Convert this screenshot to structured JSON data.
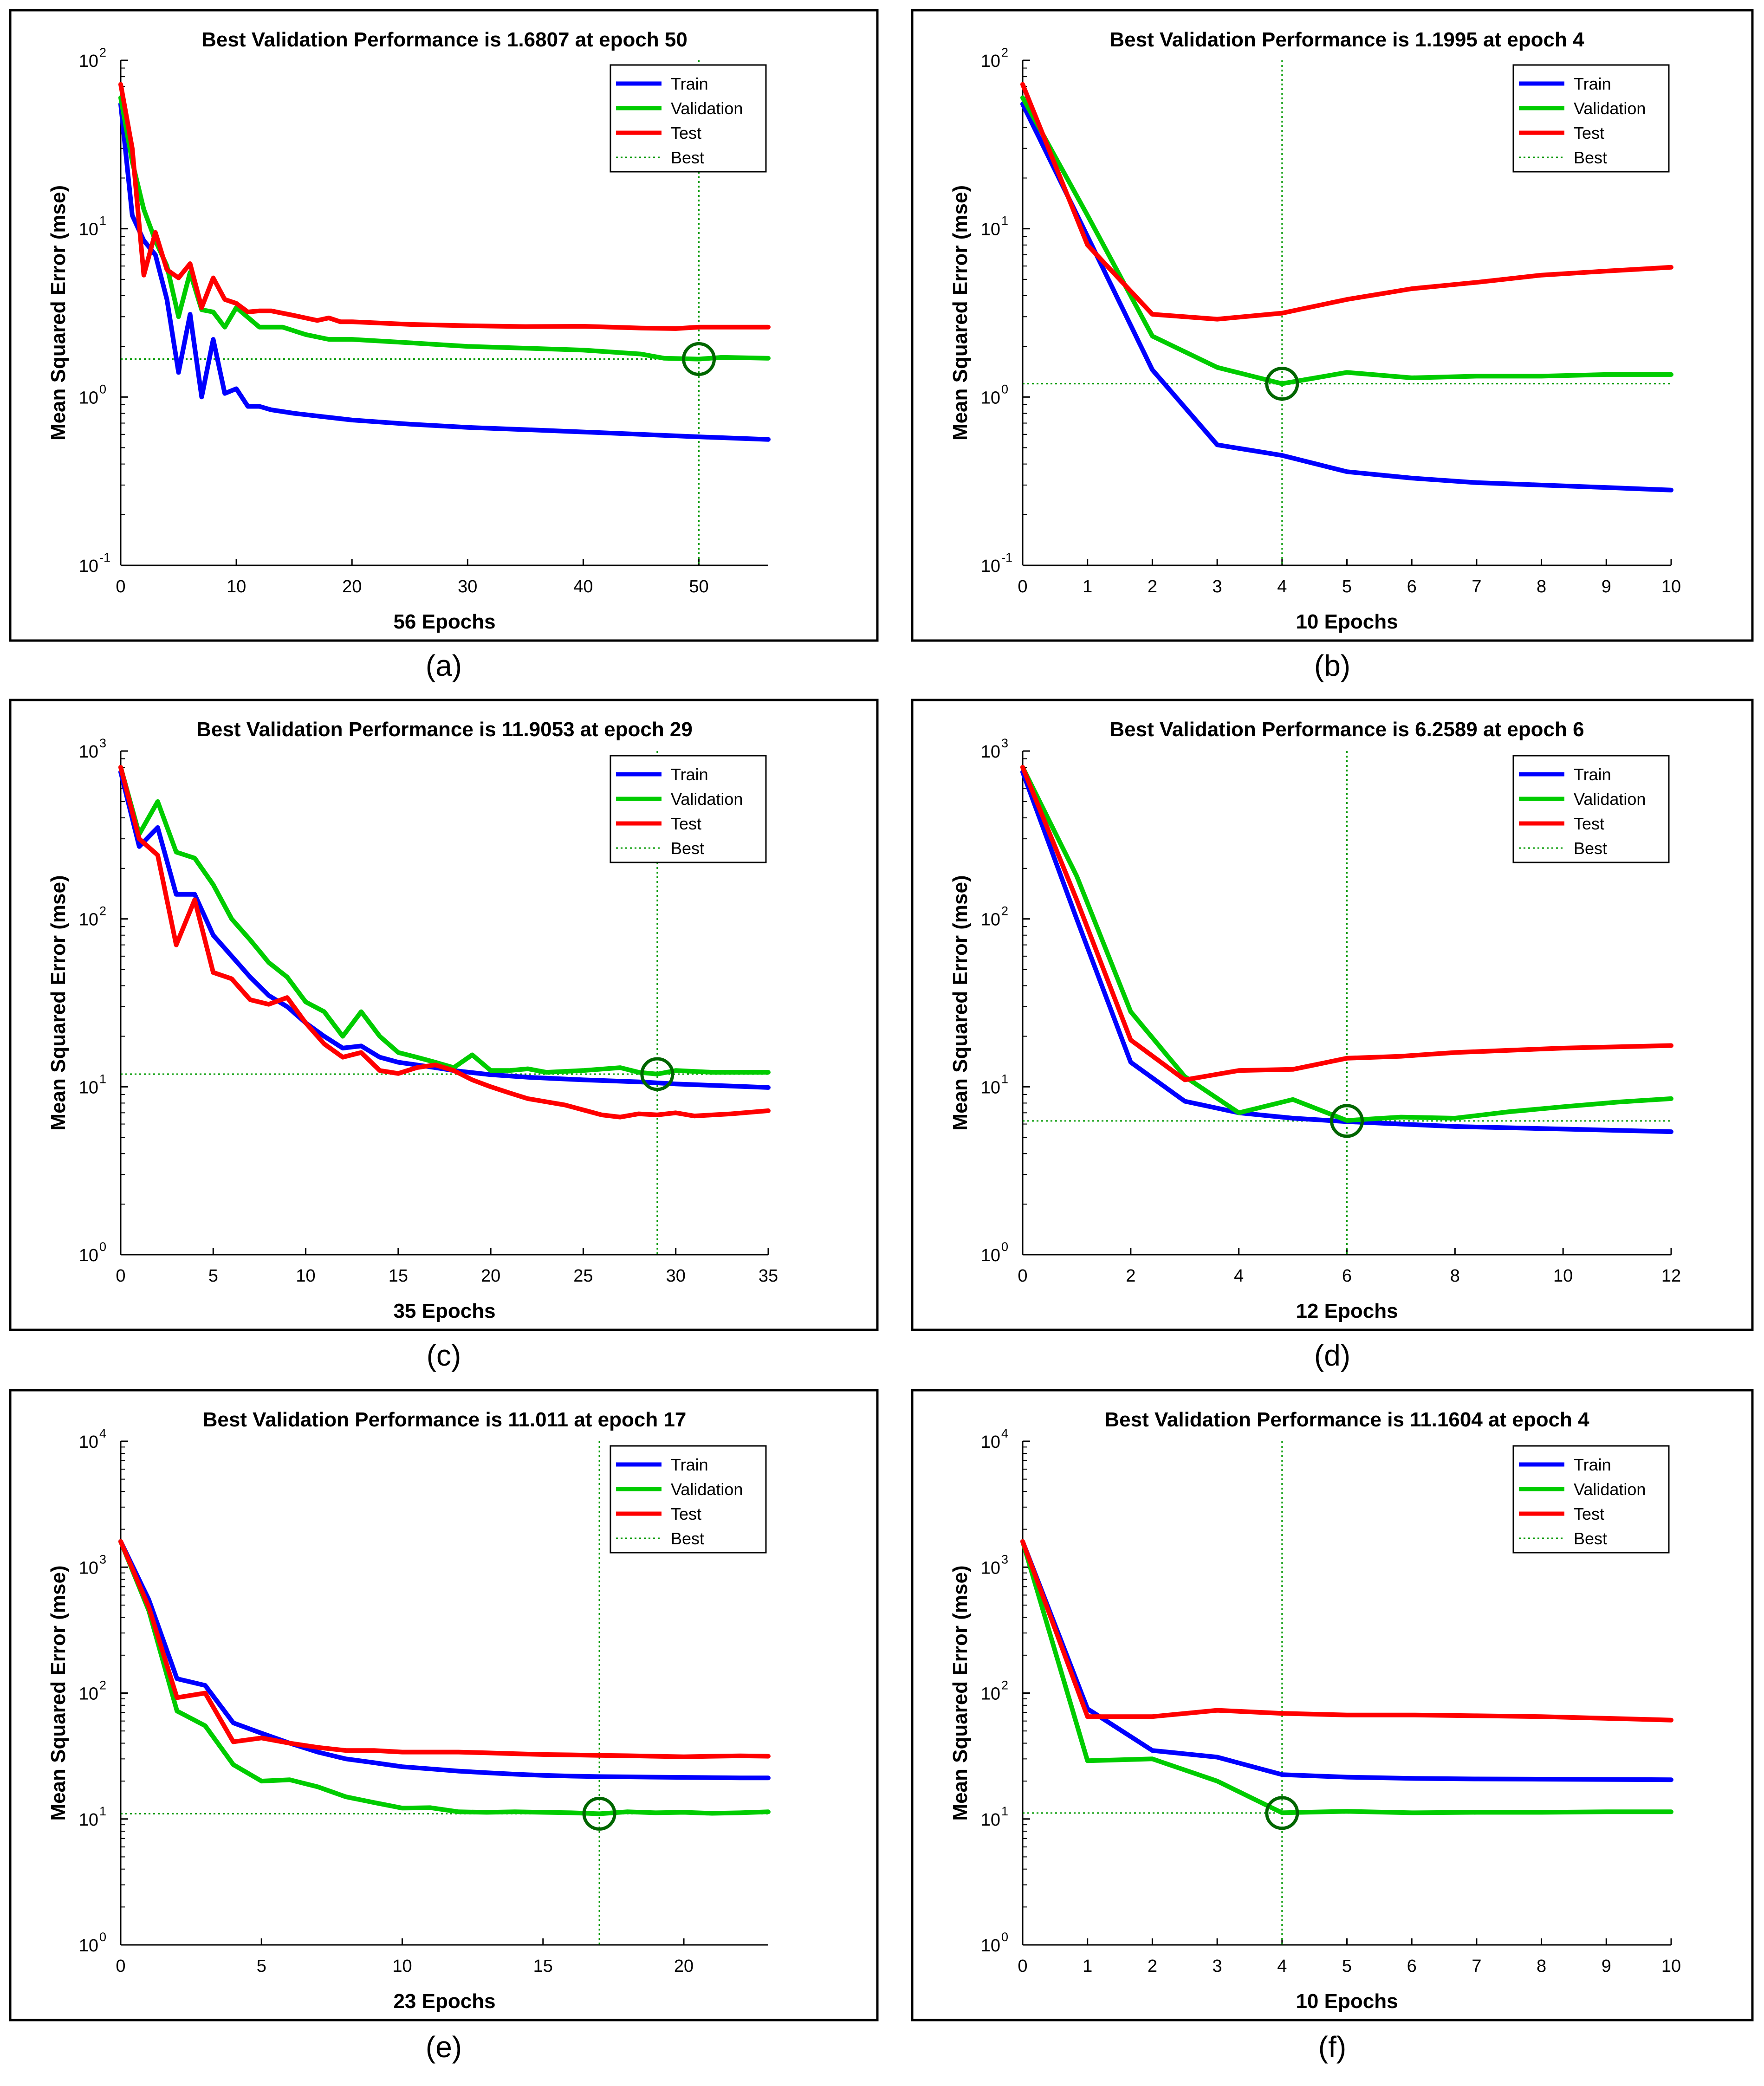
{
  "colors": {
    "train": "#0000ff",
    "validation": "#00cc00",
    "test": "#ff0000",
    "best": "#009900",
    "best_circle": "#006600",
    "frame": "#000000",
    "axis_text": "#000000"
  },
  "chart_data": [
    {
      "type": "line",
      "panel_label": "(a)",
      "title": "Best Validation Performance is 1.6807 at epoch 50",
      "xlabel": "56 Epochs",
      "ylabel": "Mean Squared Error  (mse)",
      "yscale": "log",
      "xlim": [
        0,
        56
      ],
      "ylim": [
        0.1,
        100
      ],
      "xticks": [
        0,
        10,
        20,
        30,
        40,
        50
      ],
      "yticks": [
        0.1,
        1,
        10,
        100
      ],
      "ytick_labels": [
        {
          "base": "10",
          "exp": "-1"
        },
        {
          "base": "10",
          "exp": "0"
        },
        {
          "base": "10",
          "exp": "1"
        },
        {
          "base": "10",
          "exp": "2"
        }
      ],
      "legend": [
        "Train",
        "Validation",
        "Test",
        "Best"
      ],
      "legend_position": "top-right",
      "best": {
        "epoch": 50,
        "value": 1.6807
      },
      "series": [
        {
          "name": "Train",
          "x": [
            0,
            1,
            2,
            3,
            4,
            5,
            6,
            7,
            8,
            9,
            10,
            11,
            12,
            13,
            15,
            20,
            25,
            30,
            35,
            40,
            45,
            50,
            56
          ],
          "values": [
            55,
            12,
            8.5,
            7,
            3.8,
            1.4,
            3.1,
            1.0,
            2.2,
            1.05,
            1.12,
            0.88,
            0.88,
            0.84,
            0.8,
            0.73,
            0.69,
            0.66,
            0.64,
            0.62,
            0.6,
            0.58,
            0.56
          ]
        },
        {
          "name": "Validation",
          "x": [
            0,
            1,
            2,
            3,
            4,
            5,
            6,
            7,
            8,
            9,
            10,
            12,
            14,
            16,
            18,
            20,
            25,
            30,
            35,
            40,
            45,
            47,
            50,
            52,
            56
          ],
          "values": [
            60,
            25,
            13,
            8.5,
            6,
            3.0,
            5.5,
            3.3,
            3.2,
            2.6,
            3.4,
            2.6,
            2.6,
            2.35,
            2.2,
            2.2,
            2.1,
            2.0,
            1.95,
            1.9,
            1.8,
            1.7,
            1.68,
            1.72,
            1.7
          ]
        },
        {
          "name": "Test",
          "x": [
            0,
            1,
            2,
            3,
            4,
            5,
            6,
            7,
            8,
            9,
            10,
            11,
            12,
            13,
            15,
            17,
            18,
            19,
            20,
            25,
            30,
            35,
            40,
            45,
            48,
            50,
            56
          ],
          "values": [
            72,
            30,
            5.3,
            9.5,
            5.7,
            5.1,
            6.2,
            3.4,
            5.1,
            3.8,
            3.6,
            3.2,
            3.25,
            3.25,
            3.05,
            2.85,
            2.95,
            2.8,
            2.8,
            2.7,
            2.65,
            2.62,
            2.63,
            2.57,
            2.55,
            2.6,
            2.6
          ]
        }
      ]
    },
    {
      "type": "line",
      "panel_label": "(b)",
      "title": "Best Validation Performance is 1.1995 at epoch 4",
      "xlabel": "10 Epochs",
      "ylabel": "Mean Squared Error  (mse)",
      "yscale": "log",
      "xlim": [
        0,
        10
      ],
      "ylim": [
        0.1,
        100
      ],
      "xticks": [
        0,
        1,
        2,
        3,
        4,
        5,
        6,
        7,
        8,
        9,
        10
      ],
      "yticks": [
        0.1,
        1,
        10,
        100
      ],
      "ytick_labels": [
        {
          "base": "10",
          "exp": "-1"
        },
        {
          "base": "10",
          "exp": "0"
        },
        {
          "base": "10",
          "exp": "1"
        },
        {
          "base": "10",
          "exp": "2"
        }
      ],
      "legend": [
        "Train",
        "Validation",
        "Test",
        "Best"
      ],
      "legend_position": "top-right",
      "best": {
        "epoch": 4,
        "value": 1.1995
      },
      "series": [
        {
          "name": "Train",
          "x": [
            0,
            1,
            2,
            3,
            4,
            5,
            6,
            7,
            8,
            9,
            10
          ],
          "values": [
            55,
            9,
            1.45,
            0.52,
            0.45,
            0.36,
            0.33,
            0.31,
            0.3,
            0.29,
            0.28
          ]
        },
        {
          "name": "Validation",
          "x": [
            0,
            1,
            2,
            3,
            4,
            5,
            6,
            7,
            8,
            9,
            10
          ],
          "values": [
            60,
            12,
            2.3,
            1.5,
            1.2,
            1.4,
            1.3,
            1.33,
            1.33,
            1.36,
            1.36
          ]
        },
        {
          "name": "Test",
          "x": [
            0,
            1,
            2,
            3,
            4,
            5,
            6,
            7,
            8,
            9,
            10
          ],
          "values": [
            72,
            8,
            3.1,
            2.9,
            3.15,
            3.8,
            4.4,
            4.8,
            5.3,
            5.6,
            5.9
          ]
        }
      ]
    },
    {
      "type": "line",
      "panel_label": "(c)",
      "title": "Best Validation Performance is 11.9053 at epoch 29",
      "xlabel": "35 Epochs",
      "ylabel": "Mean Squared Error  (mse)",
      "yscale": "log",
      "xlim": [
        0,
        35
      ],
      "ylim": [
        1,
        1000
      ],
      "xticks": [
        0,
        5,
        10,
        15,
        20,
        25,
        30,
        35
      ],
      "yticks": [
        1,
        10,
        100,
        1000
      ],
      "ytick_labels": [
        {
          "base": "10",
          "exp": "0"
        },
        {
          "base": "10",
          "exp": "1"
        },
        {
          "base": "10",
          "exp": "2"
        },
        {
          "base": "10",
          "exp": "3"
        }
      ],
      "legend": [
        "Train",
        "Validation",
        "Test",
        "Best"
      ],
      "legend_position": "top-right",
      "best": {
        "epoch": 29,
        "value": 11.9053
      },
      "series": [
        {
          "name": "Train",
          "x": [
            0,
            1,
            2,
            3,
            4,
            5,
            6,
            7,
            8,
            9,
            10,
            11,
            12,
            13,
            14,
            15,
            16,
            17,
            18,
            20,
            22,
            25,
            28,
            30,
            33,
            35
          ],
          "values": [
            750,
            270,
            350,
            140,
            140,
            80,
            60,
            45,
            35,
            30,
            24,
            20,
            17,
            17.5,
            15,
            14,
            13.5,
            13,
            12.5,
            11.8,
            11.4,
            11,
            10.7,
            10.4,
            10.1,
            9.9
          ]
        },
        {
          "name": "Validation",
          "x": [
            0,
            1,
            2,
            3,
            4,
            5,
            6,
            7,
            8,
            9,
            10,
            11,
            12,
            13,
            14,
            15,
            16,
            17,
            18,
            19,
            20,
            21,
            22,
            23,
            25,
            27,
            28,
            29,
            30,
            32,
            35
          ],
          "values": [
            800,
            320,
            500,
            250,
            230,
            160,
            100,
            75,
            55,
            45,
            32,
            28,
            20,
            28,
            20,
            16,
            15,
            14,
            13,
            15.5,
            12.5,
            12.5,
            12.8,
            12.2,
            12.5,
            13,
            12.2,
            11.9,
            12.5,
            12.2,
            12.2
          ]
        },
        {
          "name": "Test",
          "x": [
            0,
            1,
            2,
            3,
            4,
            5,
            6,
            7,
            8,
            9,
            10,
            11,
            12,
            13,
            14,
            15,
            16,
            17,
            18,
            19,
            20,
            21,
            22,
            24,
            26,
            27,
            28,
            29,
            30,
            31,
            33,
            35
          ],
          "values": [
            800,
            300,
            240,
            70,
            130,
            48,
            44,
            33,
            31,
            34,
            24,
            18,
            15,
            16,
            12.5,
            12,
            13,
            13.5,
            12.5,
            11,
            10,
            9.2,
            8.5,
            7.8,
            6.8,
            6.6,
            6.9,
            6.8,
            7.0,
            6.7,
            6.9,
            7.2
          ]
        }
      ]
    },
    {
      "type": "line",
      "panel_label": "(d)",
      "title": "Best Validation Performance is 6.2589 at epoch 6",
      "xlabel": "12 Epochs",
      "ylabel": "Mean Squared Error  (mse)",
      "yscale": "log",
      "xlim": [
        0,
        12
      ],
      "ylim": [
        1,
        1000
      ],
      "xticks": [
        0,
        2,
        4,
        6,
        8,
        10,
        12
      ],
      "yticks": [
        1,
        10,
        100,
        1000
      ],
      "ytick_labels": [
        {
          "base": "10",
          "exp": "0"
        },
        {
          "base": "10",
          "exp": "1"
        },
        {
          "base": "10",
          "exp": "2"
        },
        {
          "base": "10",
          "exp": "3"
        }
      ],
      "legend": [
        "Train",
        "Validation",
        "Test",
        "Best"
      ],
      "legend_position": "top-right",
      "best": {
        "epoch": 6,
        "value": 6.2589
      },
      "series": [
        {
          "name": "Train",
          "x": [
            0,
            1,
            2,
            3,
            4,
            5,
            6,
            7,
            8,
            9,
            10,
            11,
            12
          ],
          "values": [
            750,
            100,
            14,
            8.2,
            7.0,
            6.5,
            6.2,
            6.0,
            5.8,
            5.7,
            5.6,
            5.5,
            5.4
          ]
        },
        {
          "name": "Validation",
          "x": [
            0,
            1,
            2,
            3,
            4,
            5,
            6,
            7,
            8,
            9,
            10,
            11,
            12
          ],
          "values": [
            800,
            180,
            28,
            11.5,
            7.0,
            8.4,
            6.3,
            6.6,
            6.5,
            7.1,
            7.6,
            8.1,
            8.5
          ]
        },
        {
          "name": "Test",
          "x": [
            0,
            1,
            2,
            3,
            4,
            5,
            6,
            7,
            8,
            9,
            10,
            11,
            12
          ],
          "values": [
            800,
            130,
            19,
            11,
            12.5,
            12.7,
            14.8,
            15.2,
            16,
            16.5,
            17,
            17.3,
            17.6
          ]
        }
      ]
    },
    {
      "type": "line",
      "panel_label": "(e)",
      "title": "Best Validation Performance is 11.011 at epoch 17",
      "xlabel": "23 Epochs",
      "ylabel": "Mean Squared Error  (mse)",
      "yscale": "log",
      "xlim": [
        0,
        23
      ],
      "ylim": [
        1,
        10000
      ],
      "xticks": [
        0,
        5,
        10,
        15,
        20
      ],
      "yticks": [
        1,
        10,
        100,
        1000,
        10000
      ],
      "ytick_labels": [
        {
          "base": "10",
          "exp": "0"
        },
        {
          "base": "10",
          "exp": "1"
        },
        {
          "base": "10",
          "exp": "2"
        },
        {
          "base": "10",
          "exp": "3"
        },
        {
          "base": "10",
          "exp": "4"
        }
      ],
      "legend": [
        "Train",
        "Validation",
        "Test",
        "Best"
      ],
      "legend_position": "top-right",
      "best": {
        "epoch": 17,
        "value": 11.011
      },
      "series": [
        {
          "name": "Train",
          "x": [
            0,
            1,
            2,
            3,
            4,
            5,
            6,
            7,
            8,
            9,
            10,
            11,
            12,
            13,
            14,
            15,
            16,
            17,
            18,
            19,
            20,
            21,
            22,
            23
          ],
          "values": [
            1600,
            550,
            130,
            115,
            58,
            48,
            40,
            34,
            30,
            28,
            26,
            25,
            24,
            23.3,
            22.7,
            22.2,
            21.9,
            21.7,
            21.6,
            21.5,
            21.4,
            21.3,
            21.2,
            21.2
          ]
        },
        {
          "name": "Validation",
          "x": [
            0,
            1,
            2,
            3,
            4,
            5,
            6,
            7,
            8,
            9,
            10,
            11,
            12,
            13,
            14,
            15,
            16,
            17,
            18,
            19,
            20,
            21,
            22,
            23
          ],
          "values": [
            1600,
            450,
            72,
            55,
            27,
            20,
            20.5,
            18,
            15,
            13.5,
            12.2,
            12.3,
            11.4,
            11.3,
            11.4,
            11.3,
            11.2,
            11.0,
            11.4,
            11.2,
            11.3,
            11.1,
            11.2,
            11.4
          ]
        },
        {
          "name": "Test",
          "x": [
            0,
            1,
            2,
            3,
            4,
            5,
            6,
            7,
            8,
            9,
            10,
            11,
            12,
            13,
            14,
            15,
            16,
            17,
            18,
            19,
            20,
            21,
            22,
            23
          ],
          "values": [
            1600,
            480,
            92,
            100,
            41,
            44,
            40,
            37,
            35,
            35,
            34,
            34,
            34,
            33.5,
            33,
            32.5,
            32.3,
            32,
            31.8,
            31.5,
            31.2,
            31.5,
            31.7,
            31.5
          ]
        }
      ]
    },
    {
      "type": "line",
      "panel_label": "(f)",
      "title": "Best Validation Performance is 11.1604 at epoch 4",
      "xlabel": "10 Epochs",
      "ylabel": "Mean Squared Error  (mse)",
      "yscale": "log",
      "xlim": [
        0,
        10
      ],
      "ylim": [
        1,
        10000
      ],
      "xticks": [
        0,
        1,
        2,
        3,
        4,
        5,
        6,
        7,
        8,
        9,
        10
      ],
      "yticks": [
        1,
        10,
        100,
        1000,
        10000
      ],
      "ytick_labels": [
        {
          "base": "10",
          "exp": "0"
        },
        {
          "base": "10",
          "exp": "1"
        },
        {
          "base": "10",
          "exp": "2"
        },
        {
          "base": "10",
          "exp": "3"
        },
        {
          "base": "10",
          "exp": "4"
        }
      ],
      "legend": [
        "Train",
        "Validation",
        "Test",
        "Best"
      ],
      "legend_position": "top-right",
      "best": {
        "epoch": 4,
        "value": 11.1604
      },
      "series": [
        {
          "name": "Train",
          "x": [
            0,
            1,
            2,
            3,
            4,
            5,
            6,
            7,
            8,
            9,
            10
          ],
          "values": [
            1600,
            75,
            35,
            31,
            22.5,
            21.5,
            21,
            20.8,
            20.7,
            20.6,
            20.5
          ]
        },
        {
          "name": "Validation",
          "x": [
            0,
            1,
            2,
            3,
            4,
            5,
            6,
            7,
            8,
            9,
            10
          ],
          "values": [
            1600,
            29,
            30,
            20,
            11.2,
            11.5,
            11.2,
            11.3,
            11.3,
            11.4,
            11.4
          ]
        },
        {
          "name": "Test",
          "x": [
            0,
            1,
            2,
            3,
            4,
            5,
            6,
            7,
            8,
            9,
            10
          ],
          "values": [
            1600,
            65,
            65,
            73,
            69,
            67,
            67,
            66,
            65,
            63,
            61
          ]
        }
      ]
    }
  ]
}
